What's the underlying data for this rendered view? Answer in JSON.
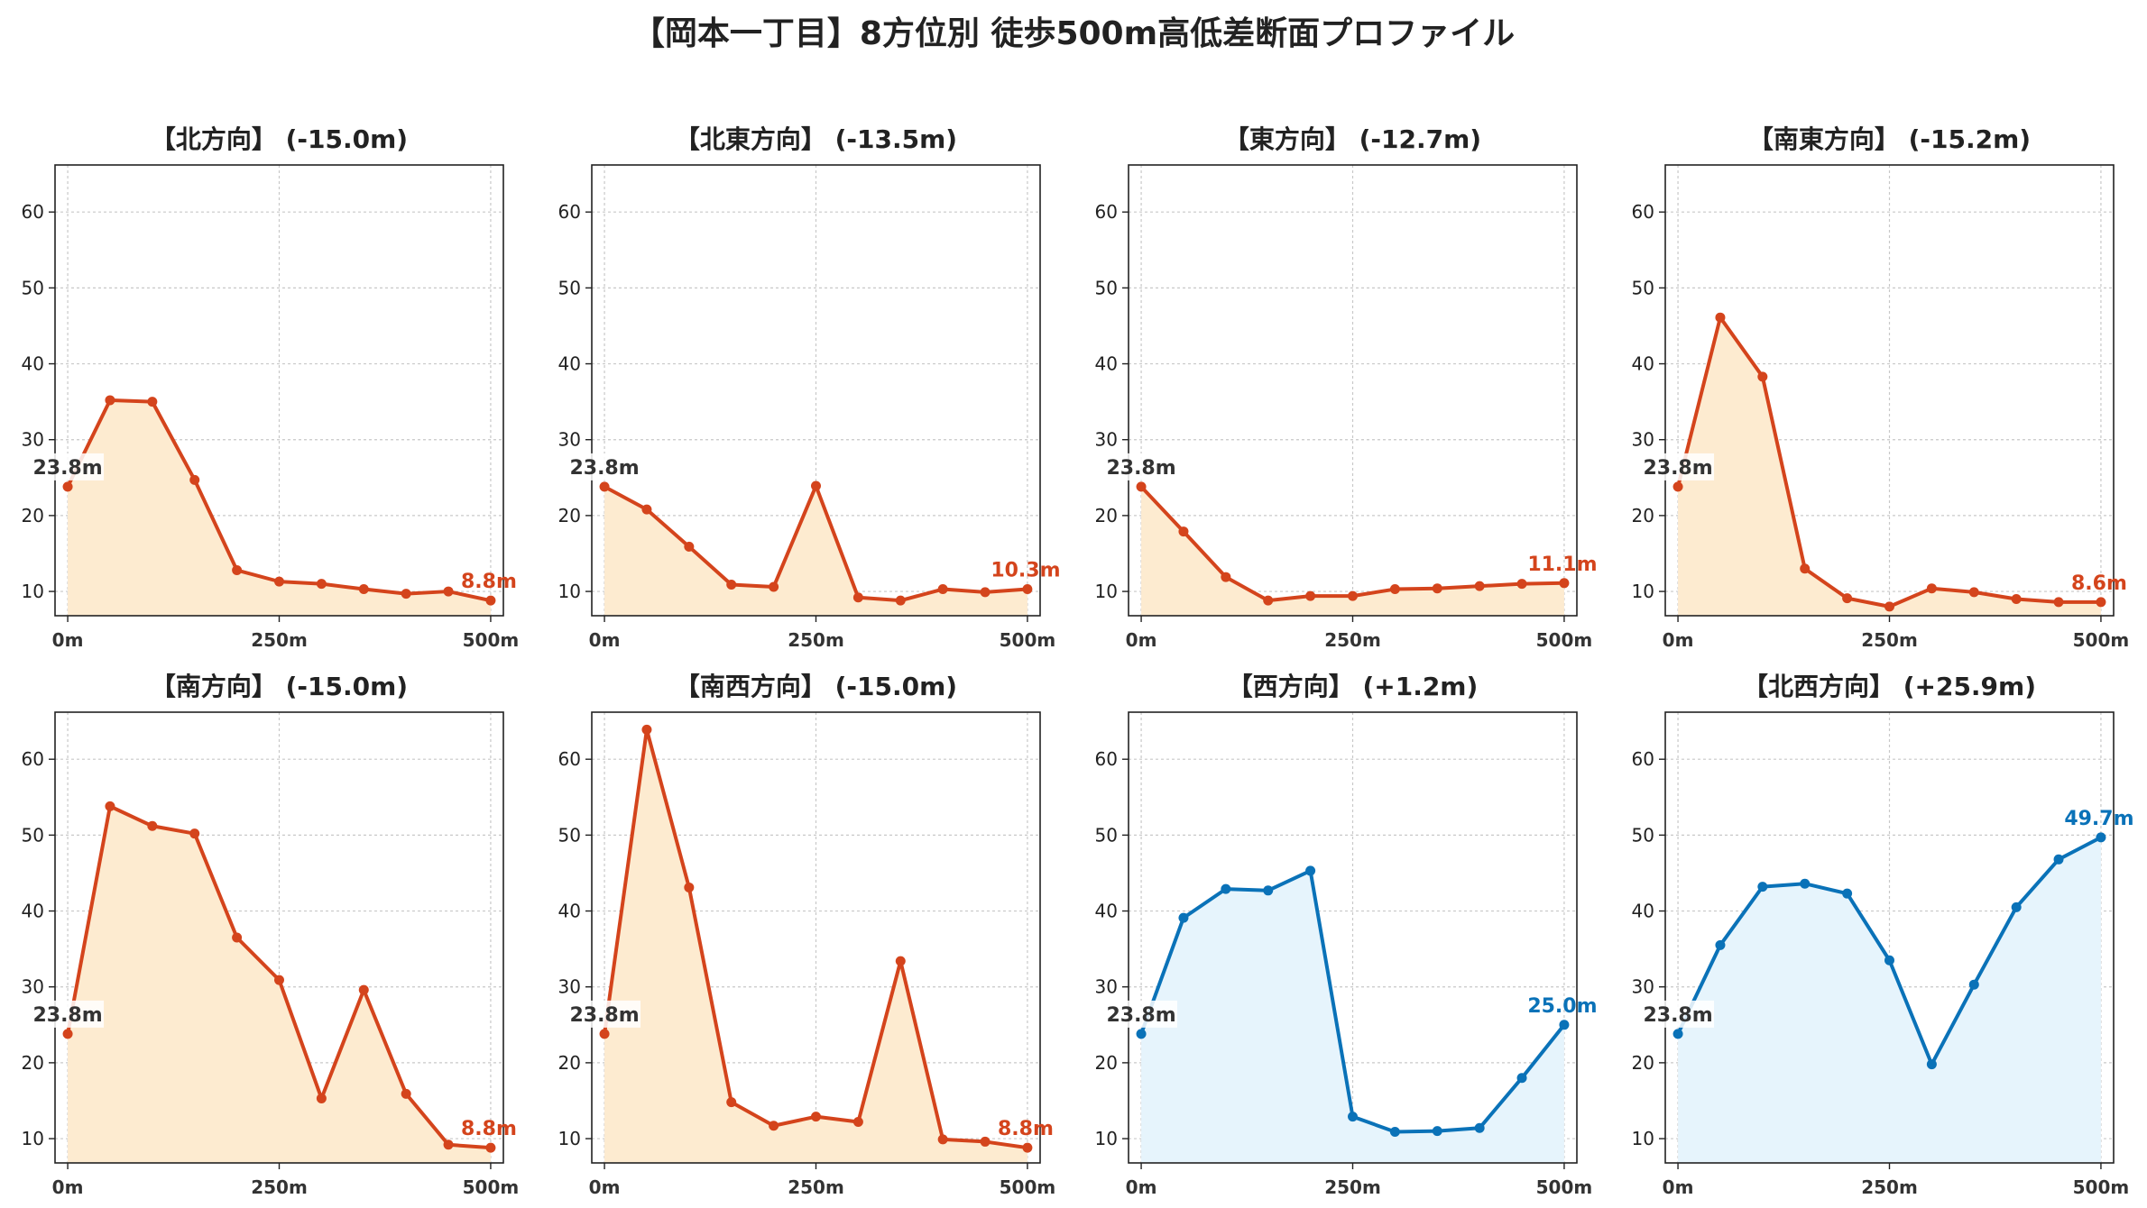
{
  "title": "【岡本一丁目】8方位別 徒歩500m高低差断面プロファイル",
  "colors": {
    "down": "#d4441c",
    "up": "#0a72b8",
    "down_fill": "#fdebd0",
    "up_fill": "#e6f4fc",
    "start_label": "#333333"
  },
  "chart_data": [
    {
      "type": "line",
      "title": "【北方向】 (-15.0m)",
      "x": [
        0,
        50,
        100,
        150,
        200,
        250,
        300,
        350,
        400,
        450,
        500
      ],
      "values": [
        23.8,
        35.2,
        35.0,
        24.7,
        12.8,
        11.3,
        11.0,
        10.3,
        9.7,
        10.0,
        8.8
      ],
      "start_label": "23.8m",
      "end_label": "8.8m",
      "trend": "down",
      "xticks": [
        "0m",
        "250m",
        "500m"
      ],
      "yticks": [
        10,
        20,
        30,
        40,
        50,
        60
      ],
      "xlim": [
        -15,
        515
      ],
      "ylim": [
        6.8,
        66.2
      ],
      "grid": true
    },
    {
      "type": "line",
      "title": "【北東方向】 (-13.5m)",
      "x": [
        0,
        50,
        100,
        150,
        200,
        250,
        300,
        350,
        400,
        450,
        500
      ],
      "values": [
        23.8,
        20.8,
        15.9,
        10.9,
        10.6,
        23.9,
        9.2,
        8.8,
        10.3,
        9.9,
        10.3
      ],
      "start_label": "23.8m",
      "end_label": "10.3m",
      "trend": "down",
      "xticks": [
        "0m",
        "250m",
        "500m"
      ],
      "yticks": [
        10,
        20,
        30,
        40,
        50,
        60
      ],
      "xlim": [
        -15,
        515
      ],
      "ylim": [
        6.8,
        66.2
      ],
      "grid": true
    },
    {
      "type": "line",
      "title": "【東方向】 (-12.7m)",
      "x": [
        0,
        50,
        100,
        150,
        200,
        250,
        300,
        350,
        400,
        450,
        500
      ],
      "values": [
        23.8,
        17.9,
        11.9,
        8.8,
        9.4,
        9.4,
        10.3,
        10.4,
        10.7,
        11.0,
        11.1
      ],
      "start_label": "23.8m",
      "end_label": "11.1m",
      "trend": "down",
      "xticks": [
        "0m",
        "250m",
        "500m"
      ],
      "yticks": [
        10,
        20,
        30,
        40,
        50,
        60
      ],
      "xlim": [
        -15,
        515
      ],
      "ylim": [
        6.8,
        66.2
      ],
      "grid": true
    },
    {
      "type": "line",
      "title": "【南東方向】 (-15.2m)",
      "x": [
        0,
        50,
        100,
        150,
        200,
        250,
        300,
        350,
        400,
        450,
        500
      ],
      "values": [
        23.8,
        46.1,
        38.3,
        13.0,
        9.1,
        8.0,
        10.4,
        9.9,
        9.0,
        8.6,
        8.6
      ],
      "start_label": "23.8m",
      "end_label": "8.6m",
      "trend": "down",
      "xticks": [
        "0m",
        "250m",
        "500m"
      ],
      "yticks": [
        10,
        20,
        30,
        40,
        50,
        60
      ],
      "xlim": [
        -15,
        515
      ],
      "ylim": [
        6.8,
        66.2
      ],
      "grid": true
    },
    {
      "type": "line",
      "title": "【南方向】 (-15.0m)",
      "x": [
        0,
        50,
        100,
        150,
        200,
        250,
        300,
        350,
        400,
        450,
        500
      ],
      "values": [
        23.8,
        53.8,
        51.2,
        50.2,
        36.5,
        30.9,
        15.3,
        29.6,
        15.9,
        9.2,
        8.8
      ],
      "start_label": "23.8m",
      "end_label": "8.8m",
      "trend": "down",
      "xticks": [
        "0m",
        "250m",
        "500m"
      ],
      "yticks": [
        10,
        20,
        30,
        40,
        50,
        60
      ],
      "xlim": [
        -15,
        515
      ],
      "ylim": [
        6.8,
        66.2
      ],
      "grid": true
    },
    {
      "type": "line",
      "title": "【南西方向】 (-15.0m)",
      "x": [
        0,
        50,
        100,
        150,
        200,
        250,
        300,
        350,
        400,
        450,
        500
      ],
      "values": [
        23.8,
        63.9,
        43.1,
        14.8,
        11.7,
        12.9,
        12.2,
        33.4,
        9.9,
        9.6,
        8.8
      ],
      "start_label": "23.8m",
      "end_label": "8.8m",
      "trend": "down",
      "xticks": [
        "0m",
        "250m",
        "500m"
      ],
      "yticks": [
        10,
        20,
        30,
        40,
        50,
        60
      ],
      "xlim": [
        -15,
        515
      ],
      "ylim": [
        6.8,
        66.2
      ],
      "grid": true
    },
    {
      "type": "line",
      "title": "【西方向】 (+1.2m)",
      "x": [
        0,
        50,
        100,
        150,
        200,
        250,
        300,
        350,
        400,
        450,
        500
      ],
      "values": [
        23.8,
        39.1,
        42.9,
        42.7,
        45.3,
        12.9,
        10.9,
        11.0,
        11.4,
        18.0,
        25.0
      ],
      "start_label": "23.8m",
      "end_label": "25.0m",
      "trend": "up",
      "xticks": [
        "0m",
        "250m",
        "500m"
      ],
      "yticks": [
        10,
        20,
        30,
        40,
        50,
        60
      ],
      "xlim": [
        -15,
        515
      ],
      "ylim": [
        6.8,
        66.2
      ],
      "grid": true
    },
    {
      "type": "line",
      "title": "【北西方向】 (+25.9m)",
      "x": [
        0,
        50,
        100,
        150,
        200,
        250,
        300,
        350,
        400,
        450,
        500
      ],
      "values": [
        23.8,
        35.5,
        43.2,
        43.6,
        42.3,
        33.5,
        19.8,
        30.3,
        40.5,
        46.8,
        49.7
      ],
      "start_label": "23.8m",
      "end_label": "49.7m",
      "trend": "up",
      "xticks": [
        "0m",
        "250m",
        "500m"
      ],
      "yticks": [
        10,
        20,
        30,
        40,
        50,
        60
      ],
      "xlim": [
        -15,
        515
      ],
      "ylim": [
        6.8,
        66.2
      ],
      "grid": true
    }
  ]
}
